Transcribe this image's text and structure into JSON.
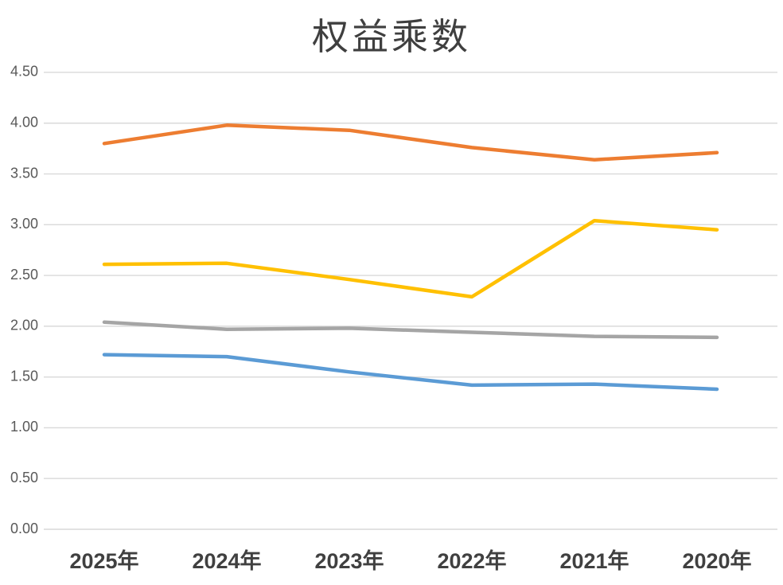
{
  "chart_data": {
    "type": "line",
    "title": "权益乘数",
    "categories": [
      "2025年",
      "2024年",
      "2023年",
      "2022年",
      "2021年",
      "2020年"
    ],
    "series": [
      {
        "name": "orange-series",
        "color": "#ED7D31",
        "values": [
          3.8,
          3.98,
          3.93,
          3.76,
          3.64,
          3.71
        ]
      },
      {
        "name": "yellow-series",
        "color": "#FFC000",
        "values": [
          2.61,
          2.62,
          2.46,
          2.29,
          3.04,
          2.95
        ]
      },
      {
        "name": "gray-series",
        "color": "#A5A5A5",
        "values": [
          2.04,
          1.97,
          1.98,
          1.94,
          1.9,
          1.89
        ]
      },
      {
        "name": "blue-series",
        "color": "#5B9BD5",
        "values": [
          1.72,
          1.7,
          1.55,
          1.42,
          1.43,
          1.38
        ]
      }
    ],
    "y_ticks": [
      "0.00",
      "0.50",
      "1.00",
      "1.50",
      "2.00",
      "2.50",
      "3.00",
      "3.50",
      "4.00",
      "4.50"
    ],
    "ylim": [
      0.0,
      4.5
    ],
    "xlabel": "",
    "ylabel": "",
    "grid": "horizontal",
    "legend": "none",
    "colors": {
      "gridline": "#D9D9D9",
      "y_tick_label": "#595959",
      "x_tick_label": "#404040",
      "title": "#3F3F3F",
      "background": "#FFFFFF"
    }
  }
}
